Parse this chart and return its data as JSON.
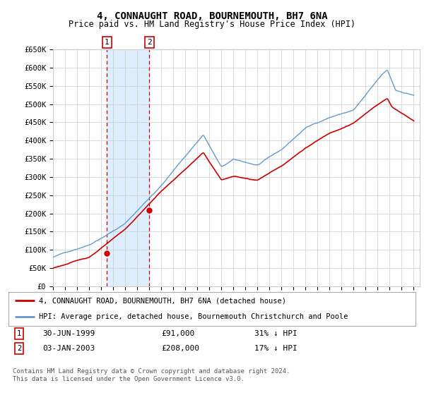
{
  "title": "4, CONNAUGHT ROAD, BOURNEMOUTH, BH7 6NA",
  "subtitle": "Price paid vs. HM Land Registry's House Price Index (HPI)",
  "ylim": [
    0,
    650000
  ],
  "xlim_start": 1995.0,
  "xlim_end": 2025.5,
  "sale1_date": 1999.49,
  "sale1_price": 91000,
  "sale1_label": "1",
  "sale1_text": "30-JUN-1999",
  "sale1_amount": "£91,000",
  "sale1_pct": "31% ↓ HPI",
  "sale2_date": 2003.01,
  "sale2_price": 208000,
  "sale2_label": "2",
  "sale2_text": "03-JAN-2003",
  "sale2_amount": "£208,000",
  "sale2_pct": "17% ↓ HPI",
  "red_color": "#cc0000",
  "blue_color": "#6699cc",
  "shade_color": "#ddeeff",
  "marker_box_color": "#cc0000",
  "legend_line1": "4, CONNAUGHT ROAD, BOURNEMOUTH, BH7 6NA (detached house)",
  "legend_line2": "HPI: Average price, detached house, Bournemouth Christchurch and Poole",
  "footnote1": "Contains HM Land Registry data © Crown copyright and database right 2024.",
  "footnote2": "This data is licensed under the Open Government Licence v3.0.",
  "bg_color": "#ffffff",
  "grid_color": "#cccccc"
}
